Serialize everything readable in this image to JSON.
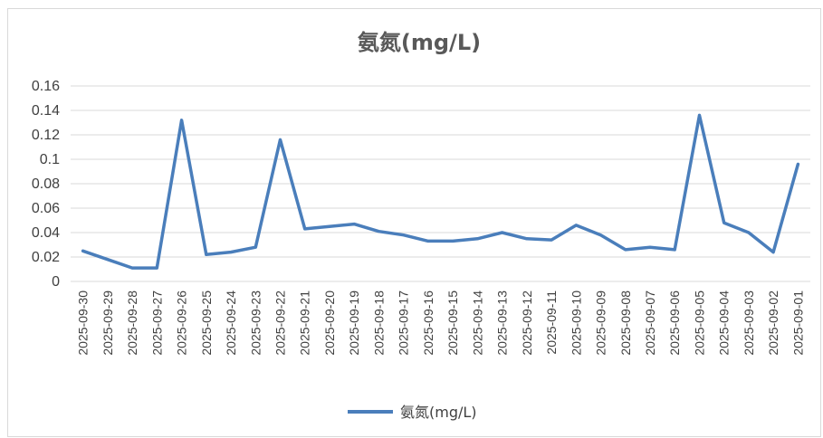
{
  "chart_data": {
    "type": "line",
    "title": "氨氮(mg/L)",
    "xlabel": "",
    "ylabel": "",
    "ylim": [
      0,
      0.16
    ],
    "yticks": [
      "0",
      "0.02",
      "0.04",
      "0.06",
      "0.08",
      "0.1",
      "0.12",
      "0.14",
      "0.16"
    ],
    "grid": true,
    "legend_position": "bottom",
    "categories": [
      "2025-09-30",
      "2025-09-29",
      "2025-09-28",
      "2025-09-27",
      "2025-09-26",
      "2025-09-25",
      "2025-09-24",
      "2025-09-23",
      "2025-09-22",
      "2025-09-21",
      "2025-09-20",
      "2025-09-19",
      "2025-09-18",
      "2025-09-17",
      "2025-09-16",
      "2025-09-15",
      "2025-09-14",
      "2025-09-13",
      "2025-09-12",
      "2025-09-11",
      "2025-09-10",
      "2025-09-09",
      "2025-09-08",
      "2025-09-07",
      "2025-09-06",
      "2025-09-05",
      "2025-09-04",
      "2025-09-03",
      "2025-09-02",
      "2025-09-01"
    ],
    "series": [
      {
        "name": "氨氮(mg/L)",
        "color": "#4a7ebb",
        "values": [
          0.025,
          0.018,
          0.011,
          0.011,
          0.132,
          0.022,
          0.024,
          0.028,
          0.116,
          0.043,
          0.045,
          0.047,
          0.041,
          0.038,
          0.033,
          0.033,
          0.035,
          0.04,
          0.035,
          0.034,
          0.046,
          0.038,
          0.026,
          0.028,
          0.026,
          0.136,
          0.048,
          0.04,
          0.024,
          0.096
        ]
      }
    ]
  }
}
